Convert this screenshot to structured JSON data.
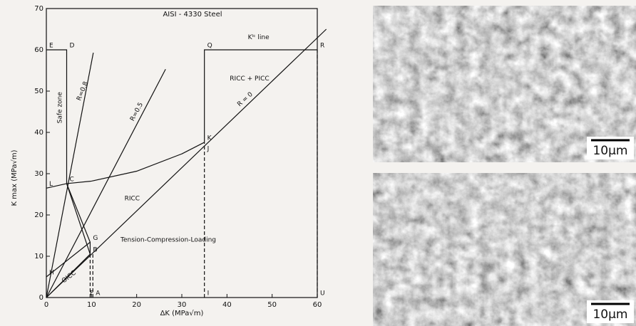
{
  "chart_data": {
    "type": "line",
    "title": "AISI - 4330 Steel",
    "xlabel": "ΔK (MPa√m)",
    "ylabel": "K max (MPa√m)",
    "xlim": [
      0,
      60
    ],
    "ylim": [
      0,
      70
    ],
    "xticks": [
      0,
      10,
      20,
      30,
      40,
      50,
      60
    ],
    "yticks": [
      0,
      10,
      20,
      30,
      40,
      50,
      60,
      70
    ],
    "color": "#111",
    "series": [
      {
        "x": [
          0,
          4.5,
          4.5
        ],
        "values": [
          60,
          60,
          27.6
        ],
        "style": "solid"
      },
      {
        "x": [
          0,
          4.5
        ],
        "values": [
          26.5,
          27.6
        ],
        "style": "solid"
      },
      {
        "x": [
          4.5,
          10,
          20,
          30,
          35
        ],
        "values": [
          27.6,
          28.2,
          30.6,
          34.8,
          37.6
        ],
        "style": "solid"
      },
      {
        "x": [
          0,
          10.4
        ],
        "values": [
          0,
          59.3
        ],
        "style": "solid"
      },
      {
        "x": [
          0,
          26.4
        ],
        "values": [
          0,
          55.3
        ],
        "style": "solid"
      },
      {
        "x": [
          0,
          62
        ],
        "values": [
          0,
          65
        ],
        "style": "solid"
      },
      {
        "x": [
          35,
          35,
          60
        ],
        "values": [
          37.6,
          60,
          60
        ],
        "style": "solid"
      },
      {
        "x": [
          35,
          35
        ],
        "values": [
          0,
          37.6
        ],
        "style": "dashed"
      },
      {
        "x": [
          60,
          60
        ],
        "values": [
          0,
          60
        ],
        "style": "dashed"
      },
      {
        "x": [
          9.7,
          9.7
        ],
        "values": [
          0,
          10.5
        ],
        "style": "dashed"
      },
      {
        "x": [
          10.3,
          10.3
        ],
        "values": [
          0,
          10.5
        ],
        "style": "dashed"
      },
      {
        "x": [
          4.5,
          9.7
        ],
        "values": [
          27.6,
          10.5
        ],
        "style": "solid"
      },
      {
        "x": [
          4.5,
          9.7,
          9.7
        ],
        "values": [
          27.6,
          13.4,
          10.5
        ],
        "style": "solid"
      },
      {
        "x": [
          0,
          9.7
        ],
        "values": [
          5,
          13.4
        ],
        "style": "solid"
      },
      {
        "x": [
          0,
          9.7
        ],
        "values": [
          0,
          10.5
        ],
        "style": "solid"
      }
    ],
    "points": [
      {
        "label": "E",
        "x": 0,
        "y": 60
      },
      {
        "label": "D",
        "x": 4.5,
        "y": 60
      },
      {
        "label": "Q",
        "x": 35,
        "y": 60
      },
      {
        "label": "R",
        "x": 60,
        "y": 60
      },
      {
        "label": "L",
        "x": 0,
        "y": 26.5
      },
      {
        "label": "C",
        "x": 4.5,
        "y": 27.6
      },
      {
        "label": "K",
        "x": 35,
        "y": 37.6
      },
      {
        "label": "J",
        "x": 35,
        "y": 35
      },
      {
        "label": "G",
        "x": 9.7,
        "y": 13.4
      },
      {
        "label": "B",
        "x": 9.7,
        "y": 10.5
      },
      {
        "label": "H",
        "x": 0,
        "y": 5
      },
      {
        "label": "F",
        "x": 9,
        "y": 0
      },
      {
        "label": "A",
        "x": 10.3,
        "y": 0
      },
      {
        "label": "I",
        "x": 35,
        "y": 0
      },
      {
        "label": "U",
        "x": 60,
        "y": 0
      }
    ],
    "annotations": [
      {
        "text": "Safe zone",
        "x": 3,
        "y": 46
      },
      {
        "text": "R=0.8",
        "x": 8,
        "y": 50
      },
      {
        "text": "R=0.5",
        "x": 20,
        "y": 45
      },
      {
        "text": "R = 0",
        "x": 44,
        "y": 48
      },
      {
        "text": "Kᴵᶜ line",
        "x": 47,
        "y": 63
      },
      {
        "text": "RICC + PICC",
        "x": 45,
        "y": 53
      },
      {
        "text": "RICC",
        "x": 19,
        "y": 24
      },
      {
        "text": "Tension-Compression-Loading",
        "x": 27,
        "y": 14
      },
      {
        "text": "OICC",
        "x": 5,
        "y": 5
      }
    ]
  },
  "images": [
    {
      "scale_label": "10µm"
    },
    {
      "scale_label": "10µm"
    }
  ]
}
